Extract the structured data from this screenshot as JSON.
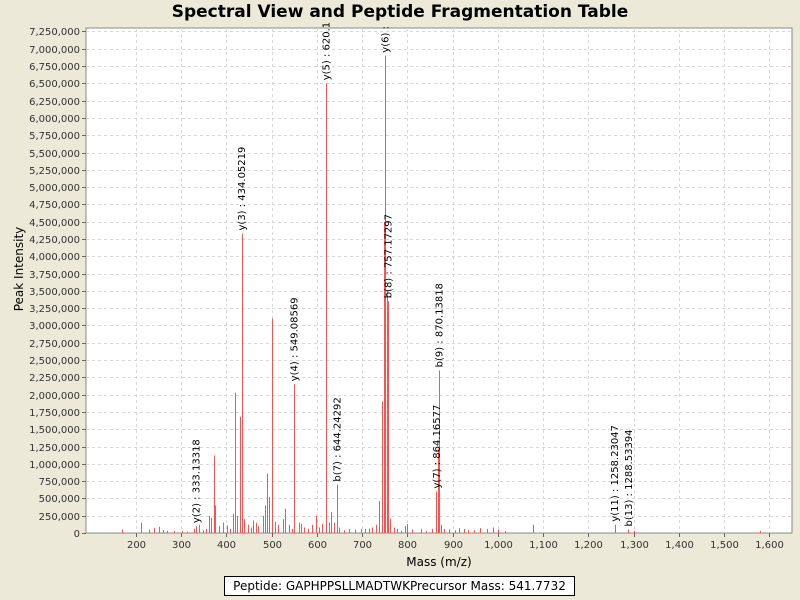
{
  "chart_data": {
    "type": "bar",
    "title": "Spectral View and Peptide Fragmentation Table",
    "xlabel": "Mass (m/z)",
    "ylabel": "Peak Intensity",
    "xlim": [
      90,
      1650
    ],
    "ylim": [
      0,
      7300000
    ],
    "x_ticks": [
      200,
      300,
      400,
      500,
      600,
      700,
      800,
      900,
      1000,
      1100,
      1200,
      1300,
      1400,
      1500,
      1600
    ],
    "x_tick_labels": [
      "200",
      "300",
      "400",
      "500",
      "600",
      "700",
      "800",
      "900",
      "1,000",
      "1,100",
      "1,200",
      "1,300",
      "1,400",
      "1,500",
      "1,600"
    ],
    "y_ticks": [
      0,
      250000,
      500000,
      750000,
      1000000,
      1250000,
      1500000,
      1750000,
      2000000,
      2250000,
      2500000,
      2750000,
      3000000,
      3250000,
      3500000,
      3750000,
      4000000,
      4250000,
      4500000,
      4750000,
      5000000,
      5250000,
      5500000,
      5750000,
      6000000,
      6250000,
      6500000,
      6750000,
      7000000,
      7250000
    ],
    "y_tick_labels": [
      "0",
      "250,000",
      "500,000",
      "750,000",
      "1,000,000",
      "1,250,000",
      "1,500,000",
      "1,750,000",
      "2,000,000",
      "2,250,000",
      "2,500,000",
      "2,750,000",
      "3,000,000",
      "3,250,000",
      "3,500,000",
      "3,750,000",
      "4,000,000",
      "4,250,000",
      "4,500,000",
      "4,750,000",
      "5,000,000",
      "5,250,000",
      "5,500,000",
      "5,750,000",
      "6,000,000",
      "6,250,000",
      "6,500,000",
      "6,750,000",
      "7,000,000",
      "7,250,000"
    ],
    "grid": true,
    "peak_color": "#ff5050",
    "peaks": [
      {
        "mz": 170,
        "i": 50000
      },
      {
        "mz": 212,
        "i": 150000
      },
      {
        "mz": 230,
        "i": 50000
      },
      {
        "mz": 240,
        "i": 70000
      },
      {
        "mz": 252,
        "i": 90000
      },
      {
        "mz": 260,
        "i": 40000
      },
      {
        "mz": 268,
        "i": 30000
      },
      {
        "mz": 285,
        "i": 30000
      },
      {
        "mz": 302,
        "i": 30000
      },
      {
        "mz": 313,
        "i": 20000
      },
      {
        "mz": 328,
        "i": 60000
      },
      {
        "mz": 333.13,
        "i": 100000
      },
      {
        "mz": 340,
        "i": 120000
      },
      {
        "mz": 348,
        "i": 40000
      },
      {
        "mz": 355,
        "i": 60000
      },
      {
        "mz": 362,
        "i": 250000
      },
      {
        "mz": 366,
        "i": 220000
      },
      {
        "mz": 372,
        "i": 1120000
      },
      {
        "mz": 375,
        "i": 400000
      },
      {
        "mz": 383,
        "i": 100000
      },
      {
        "mz": 392,
        "i": 150000
      },
      {
        "mz": 401,
        "i": 110000
      },
      {
        "mz": 408,
        "i": 60000
      },
      {
        "mz": 415,
        "i": 280000
      },
      {
        "mz": 420,
        "i": 2030000
      },
      {
        "mz": 424,
        "i": 250000
      },
      {
        "mz": 430,
        "i": 1680000
      },
      {
        "mz": 434.05,
        "i": 4330000
      },
      {
        "mz": 440,
        "i": 200000
      },
      {
        "mz": 448,
        "i": 120000
      },
      {
        "mz": 455,
        "i": 80000
      },
      {
        "mz": 460,
        "i": 180000
      },
      {
        "mz": 465,
        "i": 150000
      },
      {
        "mz": 470,
        "i": 100000
      },
      {
        "mz": 480,
        "i": 250000
      },
      {
        "mz": 485,
        "i": 400000
      },
      {
        "mz": 490,
        "i": 860000
      },
      {
        "mz": 495,
        "i": 520000
      },
      {
        "mz": 500,
        "i": 3100000
      },
      {
        "mz": 508,
        "i": 160000
      },
      {
        "mz": 515,
        "i": 120000
      },
      {
        "mz": 525,
        "i": 200000
      },
      {
        "mz": 530,
        "i": 350000
      },
      {
        "mz": 538,
        "i": 120000
      },
      {
        "mz": 545,
        "i": 60000
      },
      {
        "mz": 549.09,
        "i": 2150000
      },
      {
        "mz": 560,
        "i": 150000
      },
      {
        "mz": 565,
        "i": 130000
      },
      {
        "mz": 572,
        "i": 80000
      },
      {
        "mz": 580,
        "i": 60000
      },
      {
        "mz": 590,
        "i": 120000
      },
      {
        "mz": 598,
        "i": 250000
      },
      {
        "mz": 605,
        "i": 80000
      },
      {
        "mz": 612,
        "i": 130000
      },
      {
        "mz": 620,
        "i": 6500000
      },
      {
        "mz": 627,
        "i": 150000
      },
      {
        "mz": 632,
        "i": 300000
      },
      {
        "mz": 638,
        "i": 150000
      },
      {
        "mz": 644.24,
        "i": 700000
      },
      {
        "mz": 650,
        "i": 80000
      },
      {
        "mz": 660,
        "i": 40000
      },
      {
        "mz": 672,
        "i": 60000
      },
      {
        "mz": 685,
        "i": 50000
      },
      {
        "mz": 698,
        "i": 60000
      },
      {
        "mz": 706,
        "i": 60000
      },
      {
        "mz": 715,
        "i": 60000
      },
      {
        "mz": 722,
        "i": 80000
      },
      {
        "mz": 730,
        "i": 120000
      },
      {
        "mz": 738,
        "i": 460000
      },
      {
        "mz": 745,
        "i": 1900000
      },
      {
        "mz": 748,
        "i": 4500000
      },
      {
        "mz": 751,
        "i": 6900000
      },
      {
        "mz": 754,
        "i": 3500000
      },
      {
        "mz": 757.17,
        "i": 3350000
      },
      {
        "mz": 762,
        "i": 200000
      },
      {
        "mz": 770,
        "i": 80000
      },
      {
        "mz": 778,
        "i": 60000
      },
      {
        "mz": 785,
        "i": 30000
      },
      {
        "mz": 795,
        "i": 100000
      },
      {
        "mz": 800,
        "i": 130000
      },
      {
        "mz": 810,
        "i": 50000
      },
      {
        "mz": 830,
        "i": 60000
      },
      {
        "mz": 842,
        "i": 30000
      },
      {
        "mz": 855,
        "i": 60000
      },
      {
        "mz": 864.17,
        "i": 600000
      },
      {
        "mz": 867,
        "i": 1220000
      },
      {
        "mz": 870.14,
        "i": 2350000
      },
      {
        "mz": 875,
        "i": 120000
      },
      {
        "mz": 882,
        "i": 60000
      },
      {
        "mz": 892,
        "i": 50000
      },
      {
        "mz": 905,
        "i": 40000
      },
      {
        "mz": 915,
        "i": 70000
      },
      {
        "mz": 925,
        "i": 60000
      },
      {
        "mz": 935,
        "i": 40000
      },
      {
        "mz": 948,
        "i": 40000
      },
      {
        "mz": 960,
        "i": 70000
      },
      {
        "mz": 975,
        "i": 60000
      },
      {
        "mz": 990,
        "i": 80000
      },
      {
        "mz": 1000,
        "i": 50000
      },
      {
        "mz": 1015,
        "i": 30000
      },
      {
        "mz": 1078,
        "i": 120000
      },
      {
        "mz": 1258.23,
        "i": 120000
      },
      {
        "mz": 1288.53,
        "i": 50000
      },
      {
        "mz": 1300,
        "i": 30000
      },
      {
        "mz": 1580,
        "i": 30000
      }
    ],
    "annotations": [
      {
        "label": "y(2) : 333.13318",
        "mz": 333.13318,
        "i": 100000
      },
      {
        "label": "y(3) : 434.05219",
        "mz": 434.05219,
        "i": 4330000
      },
      {
        "label": "y(4) : 549.08569",
        "mz": 549.08569,
        "i": 2150000
      },
      {
        "label": "y(5) : 620.1",
        "mz": 620.1,
        "i": 6500000
      },
      {
        "label": "b(7) : 644.24292",
        "mz": 644.24292,
        "i": 700000
      },
      {
        "label": "y(6) :",
        "mz": 751,
        "i": 6900000
      },
      {
        "label": "b(8) : 757.17297",
        "mz": 757.17297,
        "i": 3350000
      },
      {
        "label": "y(7) : 864.16577",
        "mz": 864.16577,
        "i": 600000
      },
      {
        "label": "b(9) : 870.13818",
        "mz": 870.13818,
        "i": 2350000
      },
      {
        "label": "y(11) : 1258.23047",
        "mz": 1258.23047,
        "i": 120000
      },
      {
        "label": "b(13) : 1288.53394",
        "mz": 1288.53394,
        "i": 50000
      }
    ]
  },
  "legend": {
    "peptide_label": "Peptide: GAPHPPSLLMADTWK",
    "precursor_label": "Precursor Mass: 541.7732"
  }
}
